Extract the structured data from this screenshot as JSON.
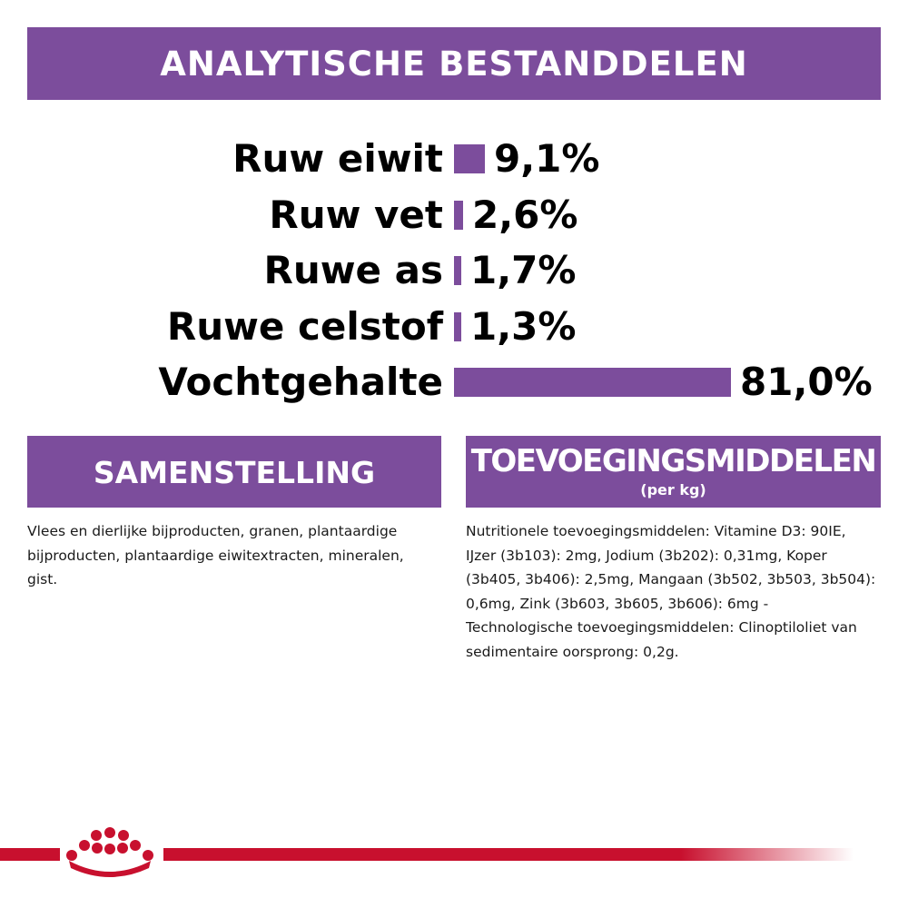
{
  "header": {
    "title": "ANALYTISCHE BESTANDDELEN"
  },
  "chart_data": {
    "type": "bar",
    "orientation": "horizontal",
    "categories": [
      "Ruw eiwit",
      "Ruw vet",
      "Ruwe as",
      "Ruwe celstof",
      "Vochtgehalte"
    ],
    "values": [
      9.1,
      2.6,
      1.7,
      1.3,
      81.0
    ],
    "value_labels": [
      "9,1%",
      "2,6%",
      "1,7%",
      "1,3%",
      "81,0%"
    ],
    "unit": "%",
    "xlim": [
      0,
      81
    ],
    "bar_color": "#7c4d9c",
    "grid": false
  },
  "sections": {
    "composition": {
      "title": "SAMENSTELLING",
      "text": "Vlees en dierlijke bijproducten, granen, plantaardige bijproducten, plantaardige eiwitextracten, mineralen, gist."
    },
    "additives": {
      "title": "TOEVOEGINGSMIDDELEN",
      "subtitle": "(per kg)",
      "text": "Nutritionele toevoegingsmiddelen: Vitamine D3: 90IE, IJzer (3b103): 2mg, Jodium (3b202): 0,31mg, Koper (3b405, 3b406): 2,5mg, Mangaan (3b502, 3b503, 3b504): 0,6mg, Zink (3b603, 3b605, 3b606): 6mg - Technologische toevoegingsmiddelen: Clinoptiloliet van sedimentaire oorsprong: 0,2g."
    }
  },
  "footer": {
    "logo_icon": "royal-canin-crown-icon",
    "brand_color": "#c8102e",
    "accent_color": "#7c4d9c"
  }
}
